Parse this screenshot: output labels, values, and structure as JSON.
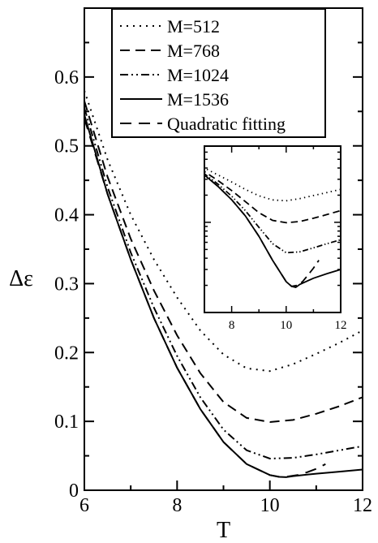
{
  "chart_data": {
    "type": "line",
    "title": "",
    "xlabel": "T",
    "ylabel": "Δε",
    "xlim": [
      6,
      12
    ],
    "ylim": [
      0,
      0.7
    ],
    "xticks": [
      {
        "value": 6,
        "label": "6"
      },
      {
        "value": 8,
        "label": "8"
      },
      {
        "value": 10,
        "label": "10"
      },
      {
        "value": 12,
        "label": "12"
      }
    ],
    "yticks": [
      {
        "value": 0,
        "label": "0"
      },
      {
        "value": 0.1,
        "label": "0.1"
      },
      {
        "value": 0.2,
        "label": "0.2"
      },
      {
        "value": 0.3,
        "label": "0.3"
      },
      {
        "value": 0.4,
        "label": "0.4"
      },
      {
        "value": 0.5,
        "label": "0.5"
      },
      {
        "value": 0.6,
        "label": "0.6"
      }
    ],
    "legend_position": "top",
    "grid": false,
    "series": [
      {
        "name": "M=512",
        "dash": "dotted",
        "x": [
          6.0,
          6.5,
          7.0,
          7.5,
          8.0,
          8.5,
          9.0,
          9.5,
          10.0,
          10.5,
          11.0,
          11.5,
          12.0
        ],
        "y": [
          0.58,
          0.48,
          0.4,
          0.335,
          0.28,
          0.232,
          0.197,
          0.177,
          0.173,
          0.183,
          0.198,
          0.214,
          0.232
        ]
      },
      {
        "name": "M=768",
        "dash": "dashed",
        "x": [
          6.0,
          6.5,
          7.0,
          7.5,
          8.0,
          8.5,
          9.0,
          9.5,
          10.0,
          10.5,
          11.0,
          11.5,
          12.0
        ],
        "y": [
          0.565,
          0.455,
          0.365,
          0.29,
          0.225,
          0.17,
          0.128,
          0.105,
          0.099,
          0.102,
          0.111,
          0.122,
          0.135
        ]
      },
      {
        "name": "M=1024",
        "dash": "dashdotdot",
        "x": [
          6.0,
          6.5,
          7.0,
          7.5,
          8.0,
          8.5,
          9.0,
          9.5,
          10.0,
          10.5,
          11.0,
          11.5,
          12.0
        ],
        "y": [
          0.555,
          0.44,
          0.345,
          0.265,
          0.195,
          0.135,
          0.088,
          0.058,
          0.046,
          0.047,
          0.052,
          0.058,
          0.064
        ]
      },
      {
        "name": "M=1536",
        "dash": "solid",
        "x": [
          6.0,
          6.5,
          7.0,
          7.5,
          8.0,
          8.5,
          9.0,
          9.5,
          10.0,
          10.2,
          10.35,
          10.5,
          11.0,
          11.5,
          12.0
        ],
        "y": [
          0.545,
          0.43,
          0.335,
          0.25,
          0.178,
          0.118,
          0.07,
          0.038,
          0.022,
          0.0195,
          0.019,
          0.0205,
          0.024,
          0.027,
          0.03
        ]
      },
      {
        "name": "Quadratic fitting",
        "dash": "longdash",
        "x": [
          6.0,
          6.5,
          7.0,
          7.5,
          8.0,
          8.5,
          9.0,
          9.5,
          10.0,
          10.2,
          10.4,
          10.6,
          10.8,
          11.0,
          11.2
        ],
        "y": [
          0.54,
          0.43,
          0.335,
          0.25,
          0.178,
          0.118,
          0.07,
          0.038,
          0.022,
          0.0195,
          0.02,
          0.022,
          0.026,
          0.031,
          0.038
        ]
      }
    ],
    "inset": {
      "xlim": [
        7,
        12
      ],
      "xticks": [
        {
          "value": 8,
          "label": "8"
        },
        {
          "value": 10,
          "label": "10"
        },
        {
          "value": 12,
          "label": "12"
        }
      ],
      "yscale": "log",
      "ylim": [
        0.01,
        0.7
      ]
    }
  }
}
